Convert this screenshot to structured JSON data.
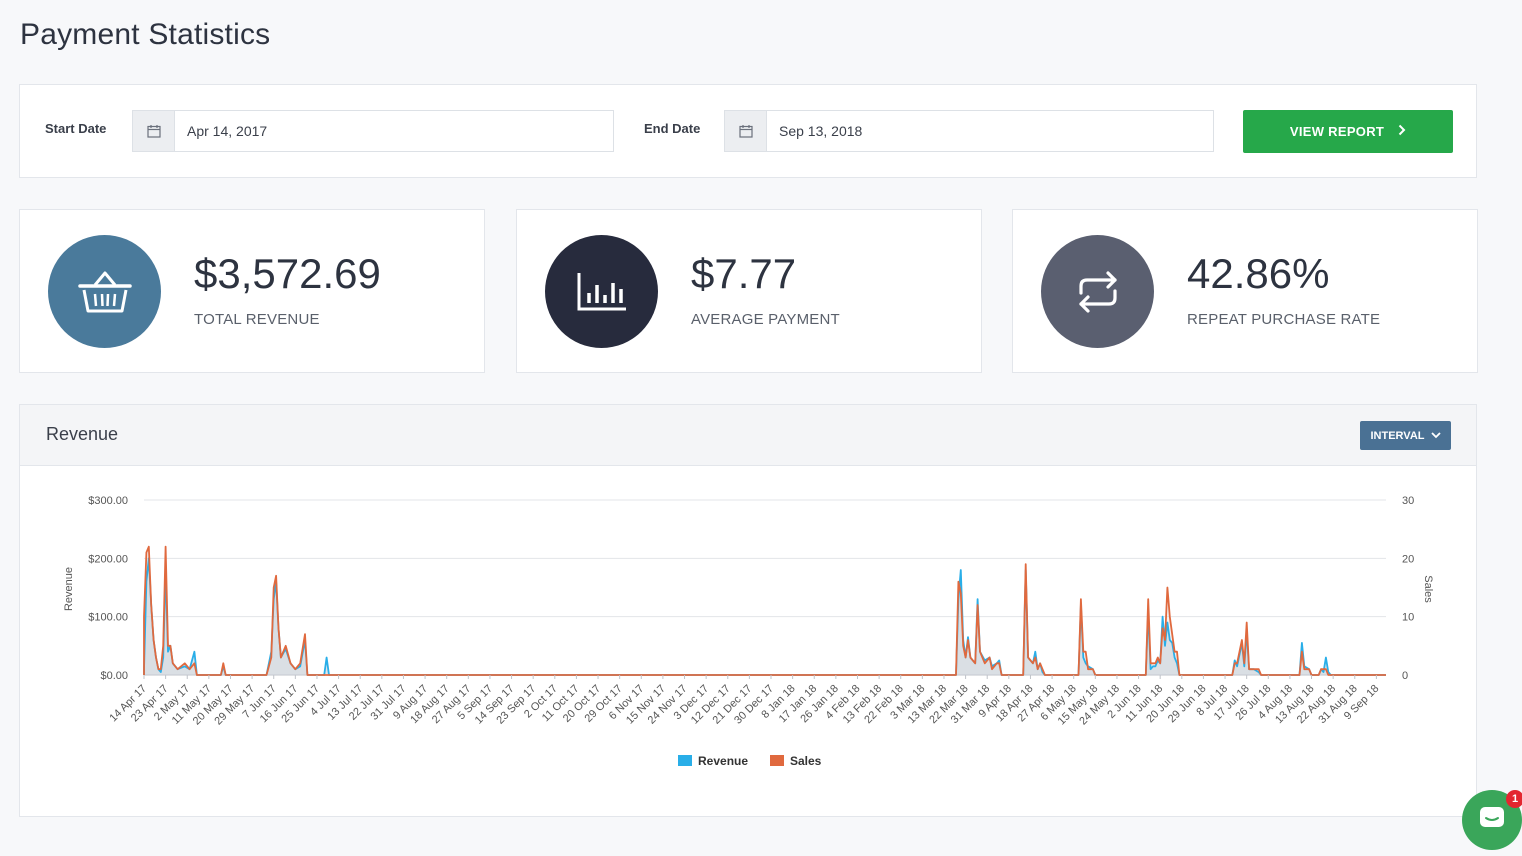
{
  "page": {
    "title": "Payment Statistics"
  },
  "filters": {
    "start_label": "Start Date",
    "start_value": "Apr 14, 2017",
    "end_label": "End Date",
    "end_value": "Sep 13, 2018",
    "view_report_label": "VIEW REPORT"
  },
  "stats": [
    {
      "value": "$3,572.69",
      "label": "TOTAL REVENUE",
      "icon": "basket-icon",
      "color": "#4a7a9b"
    },
    {
      "value": "$7.77",
      "label": "AVERAGE PAYMENT",
      "icon": "bar-chart-icon",
      "color": "#272b3d"
    },
    {
      "value": "42.86%",
      "label": "REPEAT PURCHASE RATE",
      "icon": "repeat-icon",
      "color": "#5a5f70"
    }
  ],
  "chart_panel": {
    "title": "Revenue",
    "interval_label": "INTERVAL"
  },
  "chat": {
    "badge_count": "1"
  },
  "colors": {
    "revenue": "#29aee8",
    "sales": "#e0693e",
    "accent_green": "#26a84a"
  },
  "chart_data": {
    "type": "line",
    "ylabel": "Revenue",
    "y2label": "Sales",
    "yticks": [
      "$300.00",
      "$200.00",
      "$100.00",
      "$0.00"
    ],
    "yticks_right": [
      "30",
      "20",
      "10",
      "0"
    ],
    "ylim": [
      0,
      300
    ],
    "y2lim": [
      0,
      30
    ],
    "x_start": "2017-04-14",
    "x_end": "2018-09-13",
    "xticks": [
      "14 Apr 17",
      "23 Apr 17",
      "2 May 17",
      "11 May 17",
      "20 May 17",
      "29 May 17",
      "7 Jun 17",
      "16 Jun 17",
      "25 Jun 17",
      "4 Jul 17",
      "13 Jul 17",
      "22 Jul 17",
      "31 Jul 17",
      "9 Aug 17",
      "18 Aug 17",
      "27 Aug 17",
      "5 Sep 17",
      "14 Sep 17",
      "23 Sep 17",
      "2 Oct 17",
      "11 Oct 17",
      "20 Oct 17",
      "29 Oct 17",
      "6 Nov 17",
      "15 Nov 17",
      "24 Nov 17",
      "3 Dec 17",
      "12 Dec 17",
      "21 Dec 17",
      "30 Dec 17",
      "8 Jan 18",
      "17 Jan 18",
      "26 Jan 18",
      "4 Feb 18",
      "13 Feb 18",
      "22 Feb 18",
      "3 Mar 18",
      "13 Mar 18",
      "22 Mar 18",
      "31 Mar 18",
      "9 Apr 18",
      "18 Apr 18",
      "27 Apr 18",
      "6 May 18",
      "15 May 18",
      "24 May 18",
      "2 Jun 18",
      "11 Jun 18",
      "20 Jun 18",
      "29 Jun 18",
      "8 Jul 18",
      "17 Jul 18",
      "26 Jul 18",
      "4 Aug 18",
      "13 Aug 18",
      "22 Aug 18",
      "31 Aug 18",
      "9 Sep 18"
    ],
    "series": [
      {
        "name": "Revenue",
        "axis": "left",
        "points": [
          [
            "2017-04-14",
            10
          ],
          [
            "2017-04-15",
            160
          ],
          [
            "2017-04-16",
            200
          ],
          [
            "2017-04-17",
            120
          ],
          [
            "2017-04-18",
            60
          ],
          [
            "2017-04-19",
            30
          ],
          [
            "2017-04-20",
            10
          ],
          [
            "2017-04-21",
            5
          ],
          [
            "2017-04-22",
            30
          ],
          [
            "2017-04-23",
            180
          ],
          [
            "2017-04-24",
            40
          ],
          [
            "2017-04-25",
            50
          ],
          [
            "2017-04-26",
            20
          ],
          [
            "2017-04-28",
            10
          ],
          [
            "2017-05-01",
            15
          ],
          [
            "2017-05-03",
            10
          ],
          [
            "2017-05-05",
            40
          ],
          [
            "2017-05-06",
            0
          ],
          [
            "2017-05-16",
            0
          ],
          [
            "2017-05-17",
            15
          ],
          [
            "2017-05-18",
            0
          ],
          [
            "2017-06-04",
            0
          ],
          [
            "2017-06-06",
            40
          ],
          [
            "2017-06-07",
            130
          ],
          [
            "2017-06-08",
            160
          ],
          [
            "2017-06-09",
            80
          ],
          [
            "2017-06-10",
            30
          ],
          [
            "2017-06-12",
            45
          ],
          [
            "2017-06-14",
            20
          ],
          [
            "2017-06-16",
            10
          ],
          [
            "2017-06-18",
            15
          ],
          [
            "2017-06-20",
            60
          ],
          [
            "2017-06-21",
            0
          ],
          [
            "2017-06-28",
            0
          ],
          [
            "2017-06-29",
            30
          ],
          [
            "2017-06-30",
            0
          ],
          [
            "2018-03-18",
            0
          ],
          [
            "2018-03-19",
            130
          ],
          [
            "2018-03-20",
            180
          ],
          [
            "2018-03-21",
            60
          ],
          [
            "2018-03-22",
            30
          ],
          [
            "2018-03-23",
            65
          ],
          [
            "2018-03-24",
            30
          ],
          [
            "2018-03-26",
            20
          ],
          [
            "2018-03-27",
            130
          ],
          [
            "2018-03-28",
            40
          ],
          [
            "2018-03-30",
            25
          ],
          [
            "2018-04-01",
            30
          ],
          [
            "2018-04-02",
            15
          ],
          [
            "2018-04-04",
            20
          ],
          [
            "2018-04-05",
            25
          ],
          [
            "2018-04-06",
            0
          ],
          [
            "2018-04-15",
            0
          ],
          [
            "2018-04-16",
            180
          ],
          [
            "2018-04-17",
            30
          ],
          [
            "2018-04-19",
            20
          ],
          [
            "2018-04-20",
            40
          ],
          [
            "2018-04-21",
            10
          ],
          [
            "2018-04-22",
            20
          ],
          [
            "2018-04-23",
            5
          ],
          [
            "2018-04-24",
            0
          ],
          [
            "2018-05-08",
            0
          ],
          [
            "2018-05-09",
            120
          ],
          [
            "2018-05-10",
            30
          ],
          [
            "2018-05-11",
            20
          ],
          [
            "2018-05-12",
            15
          ],
          [
            "2018-05-14",
            10
          ],
          [
            "2018-05-15",
            0
          ],
          [
            "2018-06-05",
            0
          ],
          [
            "2018-06-06",
            110
          ],
          [
            "2018-06-07",
            10
          ],
          [
            "2018-06-08",
            15
          ],
          [
            "2018-06-09",
            15
          ],
          [
            "2018-06-10",
            25
          ],
          [
            "2018-06-11",
            20
          ],
          [
            "2018-06-12",
            100
          ],
          [
            "2018-06-13",
            50
          ],
          [
            "2018-06-14",
            90
          ],
          [
            "2018-06-15",
            60
          ],
          [
            "2018-06-16",
            55
          ],
          [
            "2018-06-17",
            30
          ],
          [
            "2018-06-18",
            20
          ],
          [
            "2018-06-19",
            0
          ],
          [
            "2018-07-11",
            0
          ],
          [
            "2018-07-12",
            25
          ],
          [
            "2018-07-13",
            15
          ],
          [
            "2018-07-15",
            55
          ],
          [
            "2018-07-16",
            15
          ],
          [
            "2018-07-17",
            75
          ],
          [
            "2018-07-18",
            10
          ],
          [
            "2018-07-20",
            10
          ],
          [
            "2018-07-22",
            5
          ],
          [
            "2018-07-23",
            0
          ],
          [
            "2018-08-08",
            0
          ],
          [
            "2018-08-09",
            55
          ],
          [
            "2018-08-10",
            15
          ],
          [
            "2018-08-12",
            10
          ],
          [
            "2018-08-13",
            0
          ],
          [
            "2018-08-16",
            0
          ],
          [
            "2018-08-17",
            10
          ],
          [
            "2018-08-18",
            5
          ],
          [
            "2018-08-19",
            30
          ],
          [
            "2018-08-20",
            5
          ],
          [
            "2018-08-21",
            0
          ]
        ]
      },
      {
        "name": "Sales",
        "axis": "right",
        "points": [
          [
            "2017-04-14",
            10
          ],
          [
            "2017-04-15",
            21
          ],
          [
            "2017-04-16",
            22
          ],
          [
            "2017-04-17",
            12
          ],
          [
            "2017-04-18",
            6
          ],
          [
            "2017-04-19",
            3
          ],
          [
            "2017-04-20",
            1
          ],
          [
            "2017-04-21",
            1
          ],
          [
            "2017-04-22",
            5
          ],
          [
            "2017-04-23",
            22
          ],
          [
            "2017-04-24",
            5
          ],
          [
            "2017-04-25",
            5
          ],
          [
            "2017-04-26",
            2
          ],
          [
            "2017-04-28",
            1
          ],
          [
            "2017-05-01",
            2
          ],
          [
            "2017-05-03",
            1
          ],
          [
            "2017-05-05",
            2
          ],
          [
            "2017-05-06",
            0
          ],
          [
            "2017-05-16",
            0
          ],
          [
            "2017-05-17",
            2
          ],
          [
            "2017-05-18",
            0
          ],
          [
            "2017-06-04",
            0
          ],
          [
            "2017-06-06",
            3
          ],
          [
            "2017-06-07",
            15
          ],
          [
            "2017-06-08",
            17
          ],
          [
            "2017-06-09",
            8
          ],
          [
            "2017-06-10",
            3
          ],
          [
            "2017-06-12",
            5
          ],
          [
            "2017-06-14",
            2
          ],
          [
            "2017-06-16",
            1
          ],
          [
            "2017-06-18",
            2
          ],
          [
            "2017-06-20",
            7
          ],
          [
            "2017-06-21",
            0
          ],
          [
            "2017-06-28",
            0
          ],
          [
            "2017-06-29",
            0
          ],
          [
            "2017-06-30",
            0
          ],
          [
            "2018-03-18",
            0
          ],
          [
            "2018-03-19",
            16
          ],
          [
            "2018-03-20",
            14
          ],
          [
            "2018-03-21",
            5
          ],
          [
            "2018-03-22",
            3
          ],
          [
            "2018-03-23",
            6
          ],
          [
            "2018-03-24",
            3
          ],
          [
            "2018-03-26",
            2
          ],
          [
            "2018-03-27",
            12
          ],
          [
            "2018-03-28",
            4
          ],
          [
            "2018-03-30",
            2
          ],
          [
            "2018-04-01",
            3
          ],
          [
            "2018-04-02",
            1
          ],
          [
            "2018-04-04",
            2
          ],
          [
            "2018-04-05",
            2
          ],
          [
            "2018-04-06",
            0
          ],
          [
            "2018-04-15",
            0
          ],
          [
            "2018-04-16",
            19
          ],
          [
            "2018-04-17",
            3
          ],
          [
            "2018-04-19",
            2
          ],
          [
            "2018-04-20",
            3
          ],
          [
            "2018-04-21",
            1
          ],
          [
            "2018-04-22",
            2
          ],
          [
            "2018-04-23",
            1
          ],
          [
            "2018-04-24",
            0
          ],
          [
            "2018-05-08",
            0
          ],
          [
            "2018-05-09",
            13
          ],
          [
            "2018-05-10",
            4
          ],
          [
            "2018-05-11",
            4
          ],
          [
            "2018-05-12",
            1
          ],
          [
            "2018-05-14",
            1
          ],
          [
            "2018-05-15",
            0
          ],
          [
            "2018-06-05",
            0
          ],
          [
            "2018-06-06",
            13
          ],
          [
            "2018-06-07",
            2
          ],
          [
            "2018-06-08",
            2
          ],
          [
            "2018-06-09",
            2
          ],
          [
            "2018-06-10",
            3
          ],
          [
            "2018-06-11",
            2
          ],
          [
            "2018-06-12",
            8
          ],
          [
            "2018-06-13",
            6
          ],
          [
            "2018-06-14",
            15
          ],
          [
            "2018-06-15",
            10
          ],
          [
            "2018-06-16",
            7
          ],
          [
            "2018-06-17",
            4
          ],
          [
            "2018-06-18",
            4
          ],
          [
            "2018-06-19",
            0
          ],
          [
            "2018-07-11",
            0
          ],
          [
            "2018-07-12",
            2
          ],
          [
            "2018-07-13",
            2
          ],
          [
            "2018-07-15",
            6
          ],
          [
            "2018-07-16",
            2
          ],
          [
            "2018-07-17",
            9
          ],
          [
            "2018-07-18",
            1
          ],
          [
            "2018-07-20",
            1
          ],
          [
            "2018-07-22",
            1
          ],
          [
            "2018-07-23",
            0
          ],
          [
            "2018-08-08",
            0
          ],
          [
            "2018-08-09",
            4
          ],
          [
            "2018-08-10",
            1
          ],
          [
            "2018-08-12",
            1
          ],
          [
            "2018-08-13",
            0
          ],
          [
            "2018-08-16",
            0
          ],
          [
            "2018-08-17",
            1
          ],
          [
            "2018-08-18",
            1
          ],
          [
            "2018-08-19",
            1
          ],
          [
            "2018-08-20",
            0
          ],
          [
            "2018-08-21",
            0
          ]
        ]
      }
    ],
    "legend": [
      "Revenue",
      "Sales"
    ],
    "legend_position": "bottom",
    "grid": true
  }
}
